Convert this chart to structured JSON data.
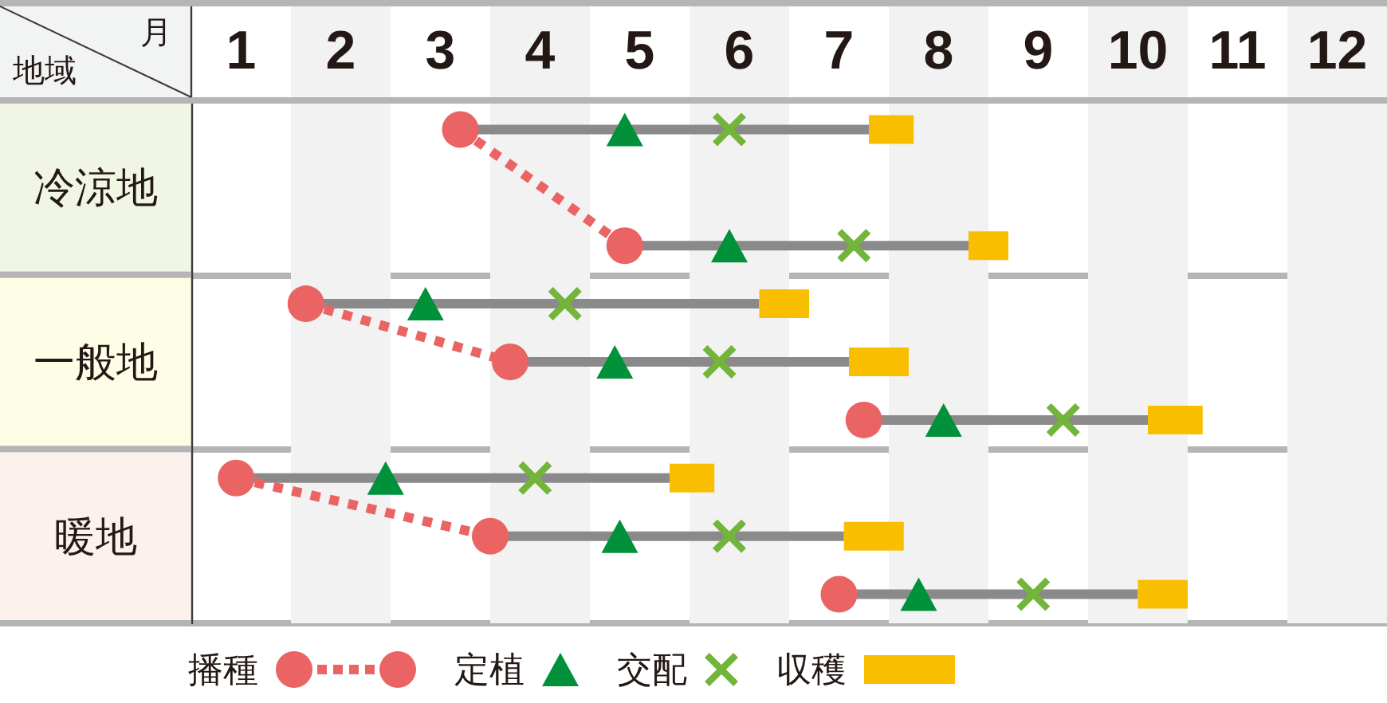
{
  "chart_data": {
    "type": "bar",
    "orientation": "horizontal",
    "xlabel": "月",
    "ylabel": "地域",
    "categories": [
      null,
      "冷涼地",
      null,
      null,
      "一般地",
      null,
      null,
      "暖地",
      null
    ],
    "xlim": [
      0.5,
      12.5
    ],
    "xticks": [
      1,
      2,
      3,
      4,
      5,
      6,
      7,
      8,
      9,
      10,
      11,
      12
    ],
    "bands": [
      {
        "axis": "x",
        "from": 1.5,
        "to": 2.5,
        "color": "#f2f2f2"
      },
      {
        "axis": "x",
        "from": 3.5,
        "to": 4.5,
        "color": "#f2f2f2"
      },
      {
        "axis": "x",
        "from": 5.5,
        "to": 6.5,
        "color": "#f2f2f2"
      },
      {
        "axis": "x",
        "from": 7.5,
        "to": 8.5,
        "color": "#f2f2f2"
      },
      {
        "axis": "x",
        "from": 9.5,
        "to": 10.5,
        "color": "#f2f2f2"
      },
      {
        "axis": "x",
        "from": 11.5,
        "to": 12.5,
        "color": "#f2f2f2"
      }
    ],
    "legend": "bottom",
    "series": [
      {
        "name": "播種",
        "type": "scatter",
        "marker": "circle",
        "color": "#eb6464",
        "values": [
          3.2,
          null,
          4.85,
          1.65,
          3.7,
          7.25,
          0.95,
          3.5,
          7
        ]
      },
      {
        "name": "定植",
        "type": "scatter",
        "marker": "triangle",
        "color": "#00913a",
        "values": [
          4.85,
          null,
          5.9,
          2.85,
          4.75,
          8.05,
          2.45,
          4.8,
          7.8
        ]
      },
      {
        "name": "交配",
        "type": "scatter",
        "marker": "cross",
        "color": "#72b53a",
        "values": [
          5.9,
          null,
          7.15,
          4.25,
          5.8,
          9.25,
          3.95,
          5.9,
          8.95
        ]
      },
      {
        "name": "収穫",
        "color": "#fabe00",
        "base": [
          7.3,
          null,
          8.3,
          6.2,
          7.1,
          10.1,
          5.3,
          7.05,
          10
        ],
        "values": [
          0.45,
          null,
          0.4,
          0.5,
          0.6,
          0.55,
          0.45,
          0.6,
          0.5
        ]
      },
      {
        "color": "#8a8a8a",
        "base": [
          3.2,
          null,
          4.85,
          1.65,
          3.7,
          7.25,
          0.95,
          3.5,
          7
        ],
        "values": [
          4.1,
          null,
          3.45,
          4.55,
          3.4,
          2.85,
          4.35,
          3.55,
          3
        ]
      },
      {
        "type": "line",
        "line_style": "dotted",
        "marker": "none",
        "color": "#eb6464",
        "values": [
          3.2,
          null,
          4.85,
          null,
          null,
          null,
          null,
          null,
          null
        ]
      },
      {
        "type": "line",
        "line_style": "dotted",
        "marker": "none",
        "color": "#eb6464",
        "values": [
          null,
          null,
          null,
          1.65,
          3.7,
          null,
          null,
          null,
          null
        ]
      },
      {
        "type": "line",
        "line_style": "dotted",
        "marker": "none",
        "color": "#eb6464",
        "values": [
          null,
          null,
          null,
          null,
          null,
          null,
          0.95,
          3.5,
          null
        ]
      }
    ]
  }
}
